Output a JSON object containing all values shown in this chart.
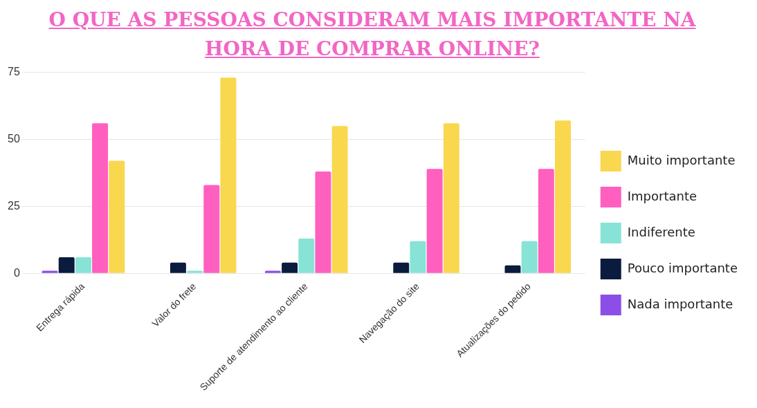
{
  "chart_data": {
    "type": "bar",
    "title": "O QUE AS PESSOAS CONSIDERAM MAIS IMPORTANTE NA HORA DE COMPRAR ONLINE?",
    "categories": [
      "Entrega rápida",
      "Valor do frete",
      "Suporte de atendimento ao cliente",
      "Navegação do site",
      "Atualizações do pedido"
    ],
    "series": [
      {
        "name": "Nada importante",
        "color": "#8b4fe8",
        "values": [
          1,
          0,
          1,
          0,
          0
        ]
      },
      {
        "name": "Pouco importante",
        "color": "#0b1b3d",
        "values": [
          6,
          4,
          4,
          4,
          3
        ]
      },
      {
        "name": "Indiferente",
        "color": "#86e3d6",
        "values": [
          6,
          1,
          13,
          12,
          12
        ]
      },
      {
        "name": "Importante",
        "color": "#ff5fbf",
        "values": [
          56,
          33,
          38,
          39,
          39
        ]
      },
      {
        "name": "Muito importante",
        "color": "#f9d74e",
        "values": [
          42,
          73,
          55,
          56,
          57
        ]
      }
    ],
    "ylim": [
      0,
      75
    ],
    "yticks": [
      0,
      25,
      50,
      75
    ],
    "grid": "y",
    "legend": "right"
  }
}
